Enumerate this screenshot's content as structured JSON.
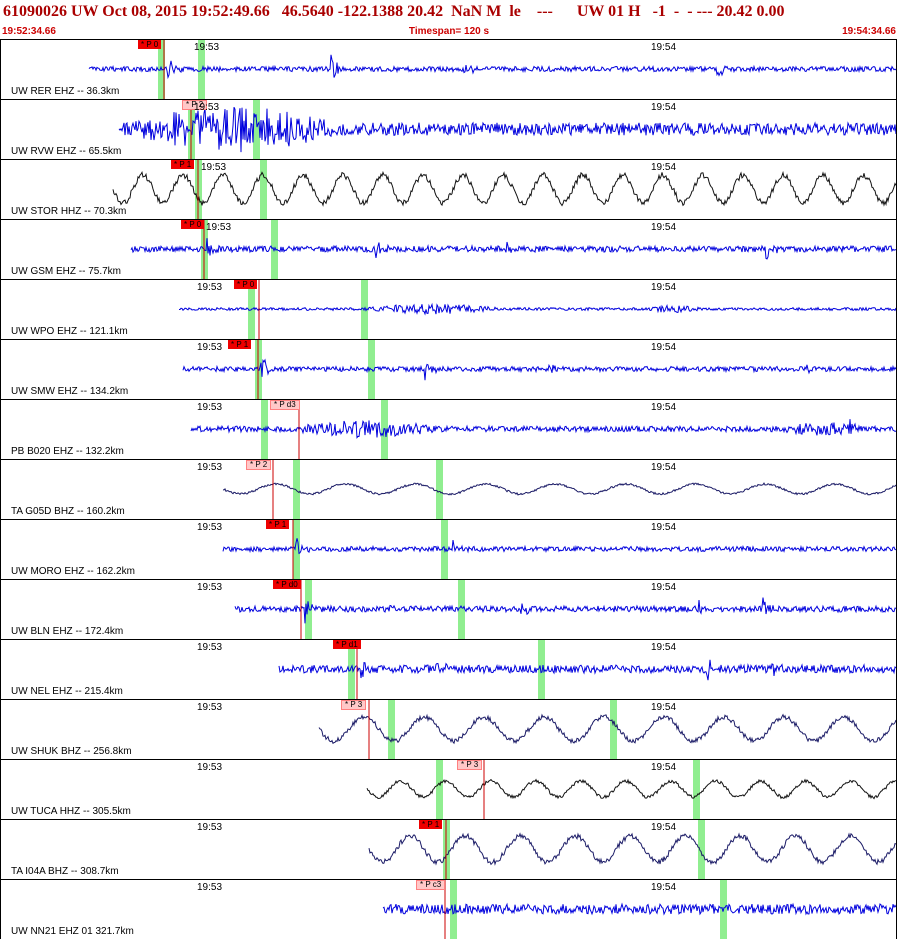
{
  "header": {
    "title": "61090026 UW Oct 08, 2015 19:52:49.66   46.5640 -122.1388 20.42  NaN M  le    ---      UW 01 H   -1  -  - --- 20.42 0.00",
    "start_time": "19:52:34.66",
    "timespan": "Timespan= 120 s",
    "end_time": "19:54:34.66"
  },
  "tick_labels": [
    "19:53",
    "19:54"
  ],
  "colors": {
    "trace_blue": "#0000dd",
    "trace_black": "#111111",
    "trace_navy": "#1a1a66",
    "pick_red": "#ee0000",
    "pick_pink": "#ffc8c8",
    "theory_green": "#90ee90",
    "pick_line": "#cc0000"
  },
  "channels": [
    {
      "label": "UW RER EHZ -- 36.3km",
      "pick": "P 0",
      "pick_style": "red"
    },
    {
      "label": "UW RVW EHZ -- 65.5km",
      "pick": "P 2",
      "pick_style": "pink"
    },
    {
      "label": "UW STOR HHZ -- 70.3km",
      "pick": "P 1",
      "pick_style": "red"
    },
    {
      "label": "UW GSM EHZ -- 75.7km",
      "pick": "P 0",
      "pick_style": "red"
    },
    {
      "label": "UW WPO EHZ -- 121.1km",
      "pick": "P 0",
      "pick_style": "red"
    },
    {
      "label": "UW SMW EHZ -- 134.2km",
      "pick": "P 1",
      "pick_style": "red"
    },
    {
      "label": "PB B020 EHZ -- 132.2km",
      "pick": "P d3",
      "pick_style": "pink"
    },
    {
      "label": "TA G05D BHZ -- 160.2km",
      "pick": "P 2",
      "pick_style": "pink"
    },
    {
      "label": "UW MORO EHZ -- 162.2km",
      "pick": "P 1",
      "pick_style": "red"
    },
    {
      "label": "UW BLN EHZ -- 172.4km",
      "pick": "P d0",
      "pick_style": "red"
    },
    {
      "label": "UW NEL EHZ -- 215.4km",
      "pick": "P d1",
      "pick_style": "red"
    },
    {
      "label": "UW SHUK BHZ -- 256.8km",
      "pick": "P 3",
      "pick_style": "pink"
    },
    {
      "label": "UW TUCA HHZ -- 305.5km",
      "pick": "P 3",
      "pick_style": "pink"
    },
    {
      "label": "TA I04A BHZ -- 308.7km",
      "pick": "P 1",
      "pick_style": "red"
    },
    {
      "label": "UW NN21 EHZ 01 321.7km",
      "pick": "P c3",
      "pick_style": "pink"
    }
  ]
}
